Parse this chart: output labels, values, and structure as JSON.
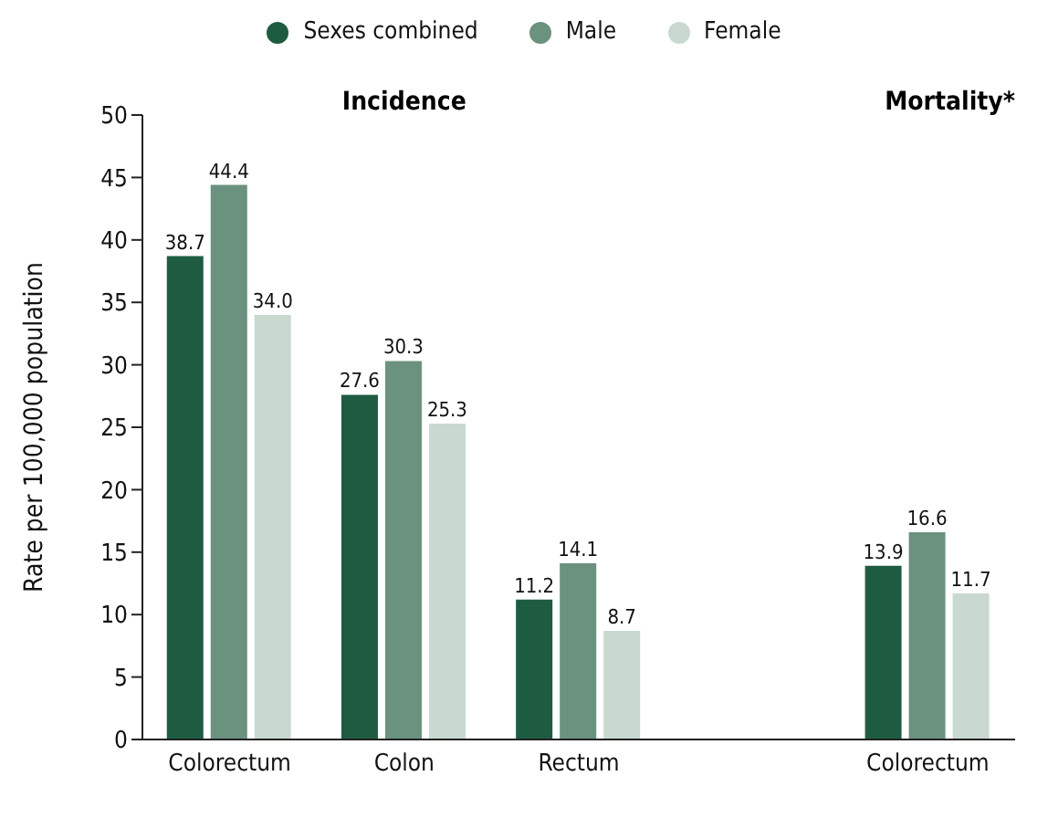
{
  "chart_data": {
    "type": "bar",
    "ylabel": "Rate per 100,000 population",
    "annotations": [
      "Incidence",
      "Mortality*"
    ],
    "categories": [
      "Colorectum",
      "Colon",
      "Rectum",
      null,
      "Colorectum"
    ],
    "ylim": [
      0,
      50
    ],
    "yticks": [
      0,
      5,
      10,
      15,
      20,
      25,
      30,
      35,
      40,
      45,
      50
    ],
    "grid": false,
    "legend": "top",
    "series": [
      {
        "name": "Sexes combined",
        "color": "#1e5c41",
        "values": [
          38.7,
          27.6,
          11.2,
          null,
          13.9
        ],
        "value_labels": [
          "38.7",
          "27.6",
          "11.2",
          null,
          "13.9"
        ]
      },
      {
        "name": "Male",
        "color": "#6a927f",
        "values": [
          44.4,
          30.3,
          14.1,
          null,
          16.6
        ],
        "value_labels": [
          "44.4",
          "30.3",
          "14.1",
          null,
          "16.6"
        ]
      },
      {
        "name": "Female",
        "color": "#c9d9d0",
        "values": [
          34.0,
          25.3,
          8.7,
          null,
          11.7
        ],
        "value_labels": [
          "34.0",
          "25.3",
          "8.7",
          null,
          "11.7"
        ]
      }
    ]
  }
}
